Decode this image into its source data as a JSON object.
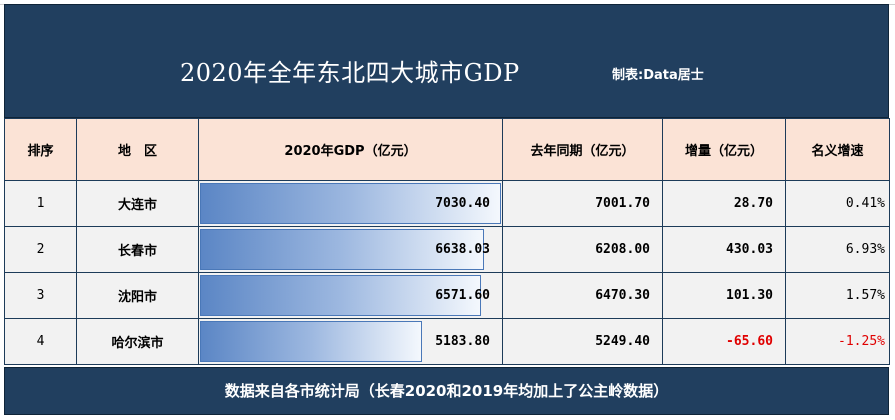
{
  "header": {
    "title": "2020年全年东北四大城市GDP",
    "credit": "制表:Data居士"
  },
  "table": {
    "columns": [
      "排序",
      "地　区",
      "2020年GDP（亿元）",
      "去年同期（亿元）",
      "增量（亿元）",
      "名义增速"
    ],
    "rows": [
      {
        "rank": "1",
        "city": "大连市",
        "gdp2020": "7030.40",
        "gdp2019": "7001.70",
        "increase": "28.70",
        "growth": "0.41%",
        "gdp_value": 7030.4
      },
      {
        "rank": "2",
        "city": "长春市",
        "gdp2020": "6638.03",
        "gdp2019": "6208.00",
        "increase": "430.03",
        "growth": "6.93%",
        "gdp_value": 6638.03
      },
      {
        "rank": "3",
        "city": "沈阳市",
        "gdp2020": "6571.60",
        "gdp2019": "6470.30",
        "increase": "101.30",
        "growth": "1.57%",
        "gdp_value": 6571.6
      },
      {
        "rank": "4",
        "city": "哈尔滨市",
        "gdp2020": "5183.80",
        "gdp2019": "5249.40",
        "increase": "-65.60",
        "growth": "-1.25%",
        "gdp_value": 5183.8
      }
    ]
  },
  "footer": {
    "note": "数据来自各市统计局（长春2020和2019年均加上了公主岭数据）"
  },
  "colors": {
    "banner": "#213f5f",
    "header_row": "#fbe3d6",
    "negative": "#e00000",
    "bar_start": "#5b86c5"
  }
}
